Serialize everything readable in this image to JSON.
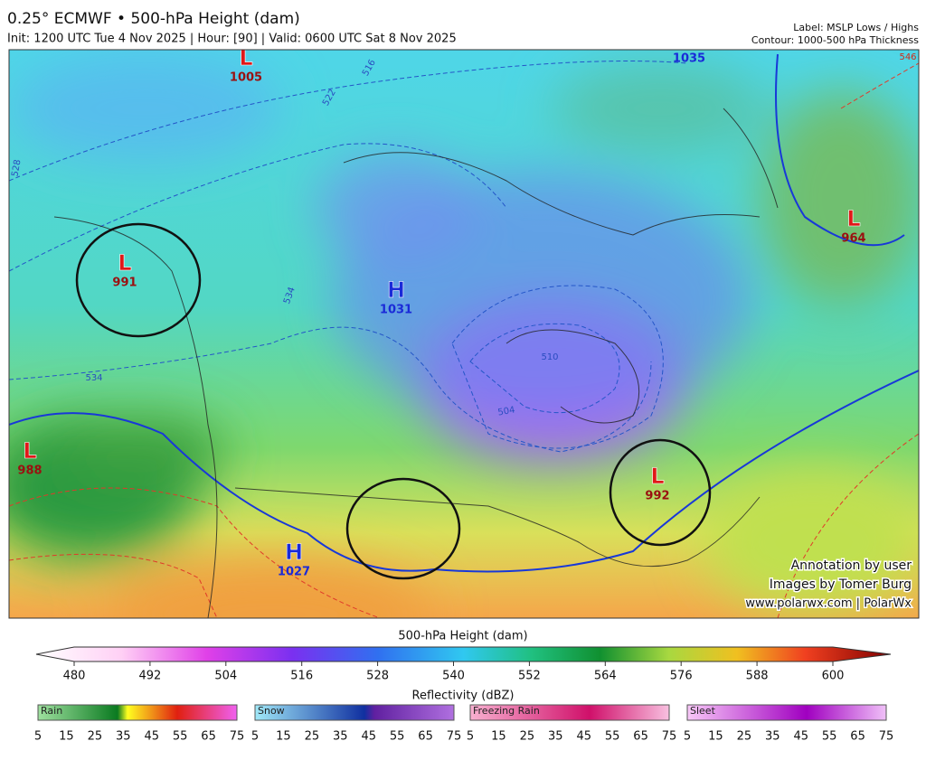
{
  "header": {
    "title": "0.25° ECMWF • 500-hPa Height (dam)",
    "subtitle": "Init: 1200 UTC Tue 4 Nov 2025 | Hour: [90] | Valid: 0600 UTC Sat 8 Nov 2025",
    "label_note": "Label: MSLP Lows / Highs",
    "contour_note": "Contour: 1000-500 hPa Thickness"
  },
  "map": {
    "pressure_centers": [
      {
        "letter": "L",
        "value": 1005
      },
      {
        "letter": "L",
        "value": 991
      },
      {
        "letter": "L",
        "value": 988
      },
      {
        "letter": "H",
        "value": 1031
      },
      {
        "letter": "H",
        "value": 1027
      },
      {
        "letter": "L",
        "value": 992
      },
      {
        "letter": "L",
        "value": 964
      },
      {
        "value": 1035
      }
    ],
    "contour_labels": [
      516,
      522,
      528,
      534,
      534,
      510,
      504,
      546
    ],
    "credits": [
      "Annotation by user",
      "Images by Tomer Burg",
      "www.polarwx.com | PolarWx"
    ]
  },
  "height_colorbar": {
    "title": "500-hPa Height (dam)",
    "ticks": [
      480,
      492,
      504,
      516,
      528,
      540,
      552,
      564,
      576,
      588,
      600
    ]
  },
  "reflectivity_colorbar": {
    "title": "Reflectivity (dBZ)",
    "groups": [
      "Rain",
      "Snow",
      "Freezing Rain",
      "Sleet"
    ],
    "ticks": [
      5,
      15,
      25,
      35,
      45,
      55,
      65,
      75
    ]
  }
}
